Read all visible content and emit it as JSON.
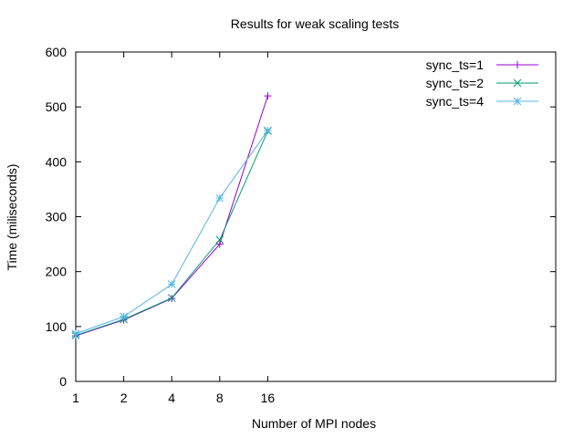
{
  "chart_data": {
    "type": "line",
    "title": "Results for weak scaling tests",
    "xlabel": "Number of MPI nodes",
    "ylabel": "Time (miliseconds)",
    "x_scale": "log2",
    "x_ticks": [
      1,
      2,
      4,
      8,
      16
    ],
    "x_tick_labels": [
      "1",
      "2",
      "4",
      "8",
      "16"
    ],
    "xlim": [
      1,
      1024
    ],
    "ylim": [
      0,
      600
    ],
    "y_ticks": [
      0,
      100,
      200,
      300,
      400,
      500,
      600
    ],
    "y_tick_labels": [
      "0",
      "100",
      "200",
      "300",
      "400",
      "500",
      "600"
    ],
    "grid": false,
    "legend_position": "top-right",
    "x": [
      1,
      2,
      4,
      8,
      16
    ],
    "series": [
      {
        "name": "sync_ts=1",
        "values": [
          83,
          112,
          151,
          250,
          520
        ],
        "color": "#9400d3",
        "marker": "plus"
      },
      {
        "name": "sync_ts=2",
        "values": [
          84,
          113,
          152,
          258,
          456
        ],
        "color": "#009e73",
        "marker": "x"
      },
      {
        "name": "sync_ts=4",
        "values": [
          87,
          118,
          177,
          334,
          457
        ],
        "color": "#56b4e9",
        "marker": "star"
      }
    ]
  }
}
